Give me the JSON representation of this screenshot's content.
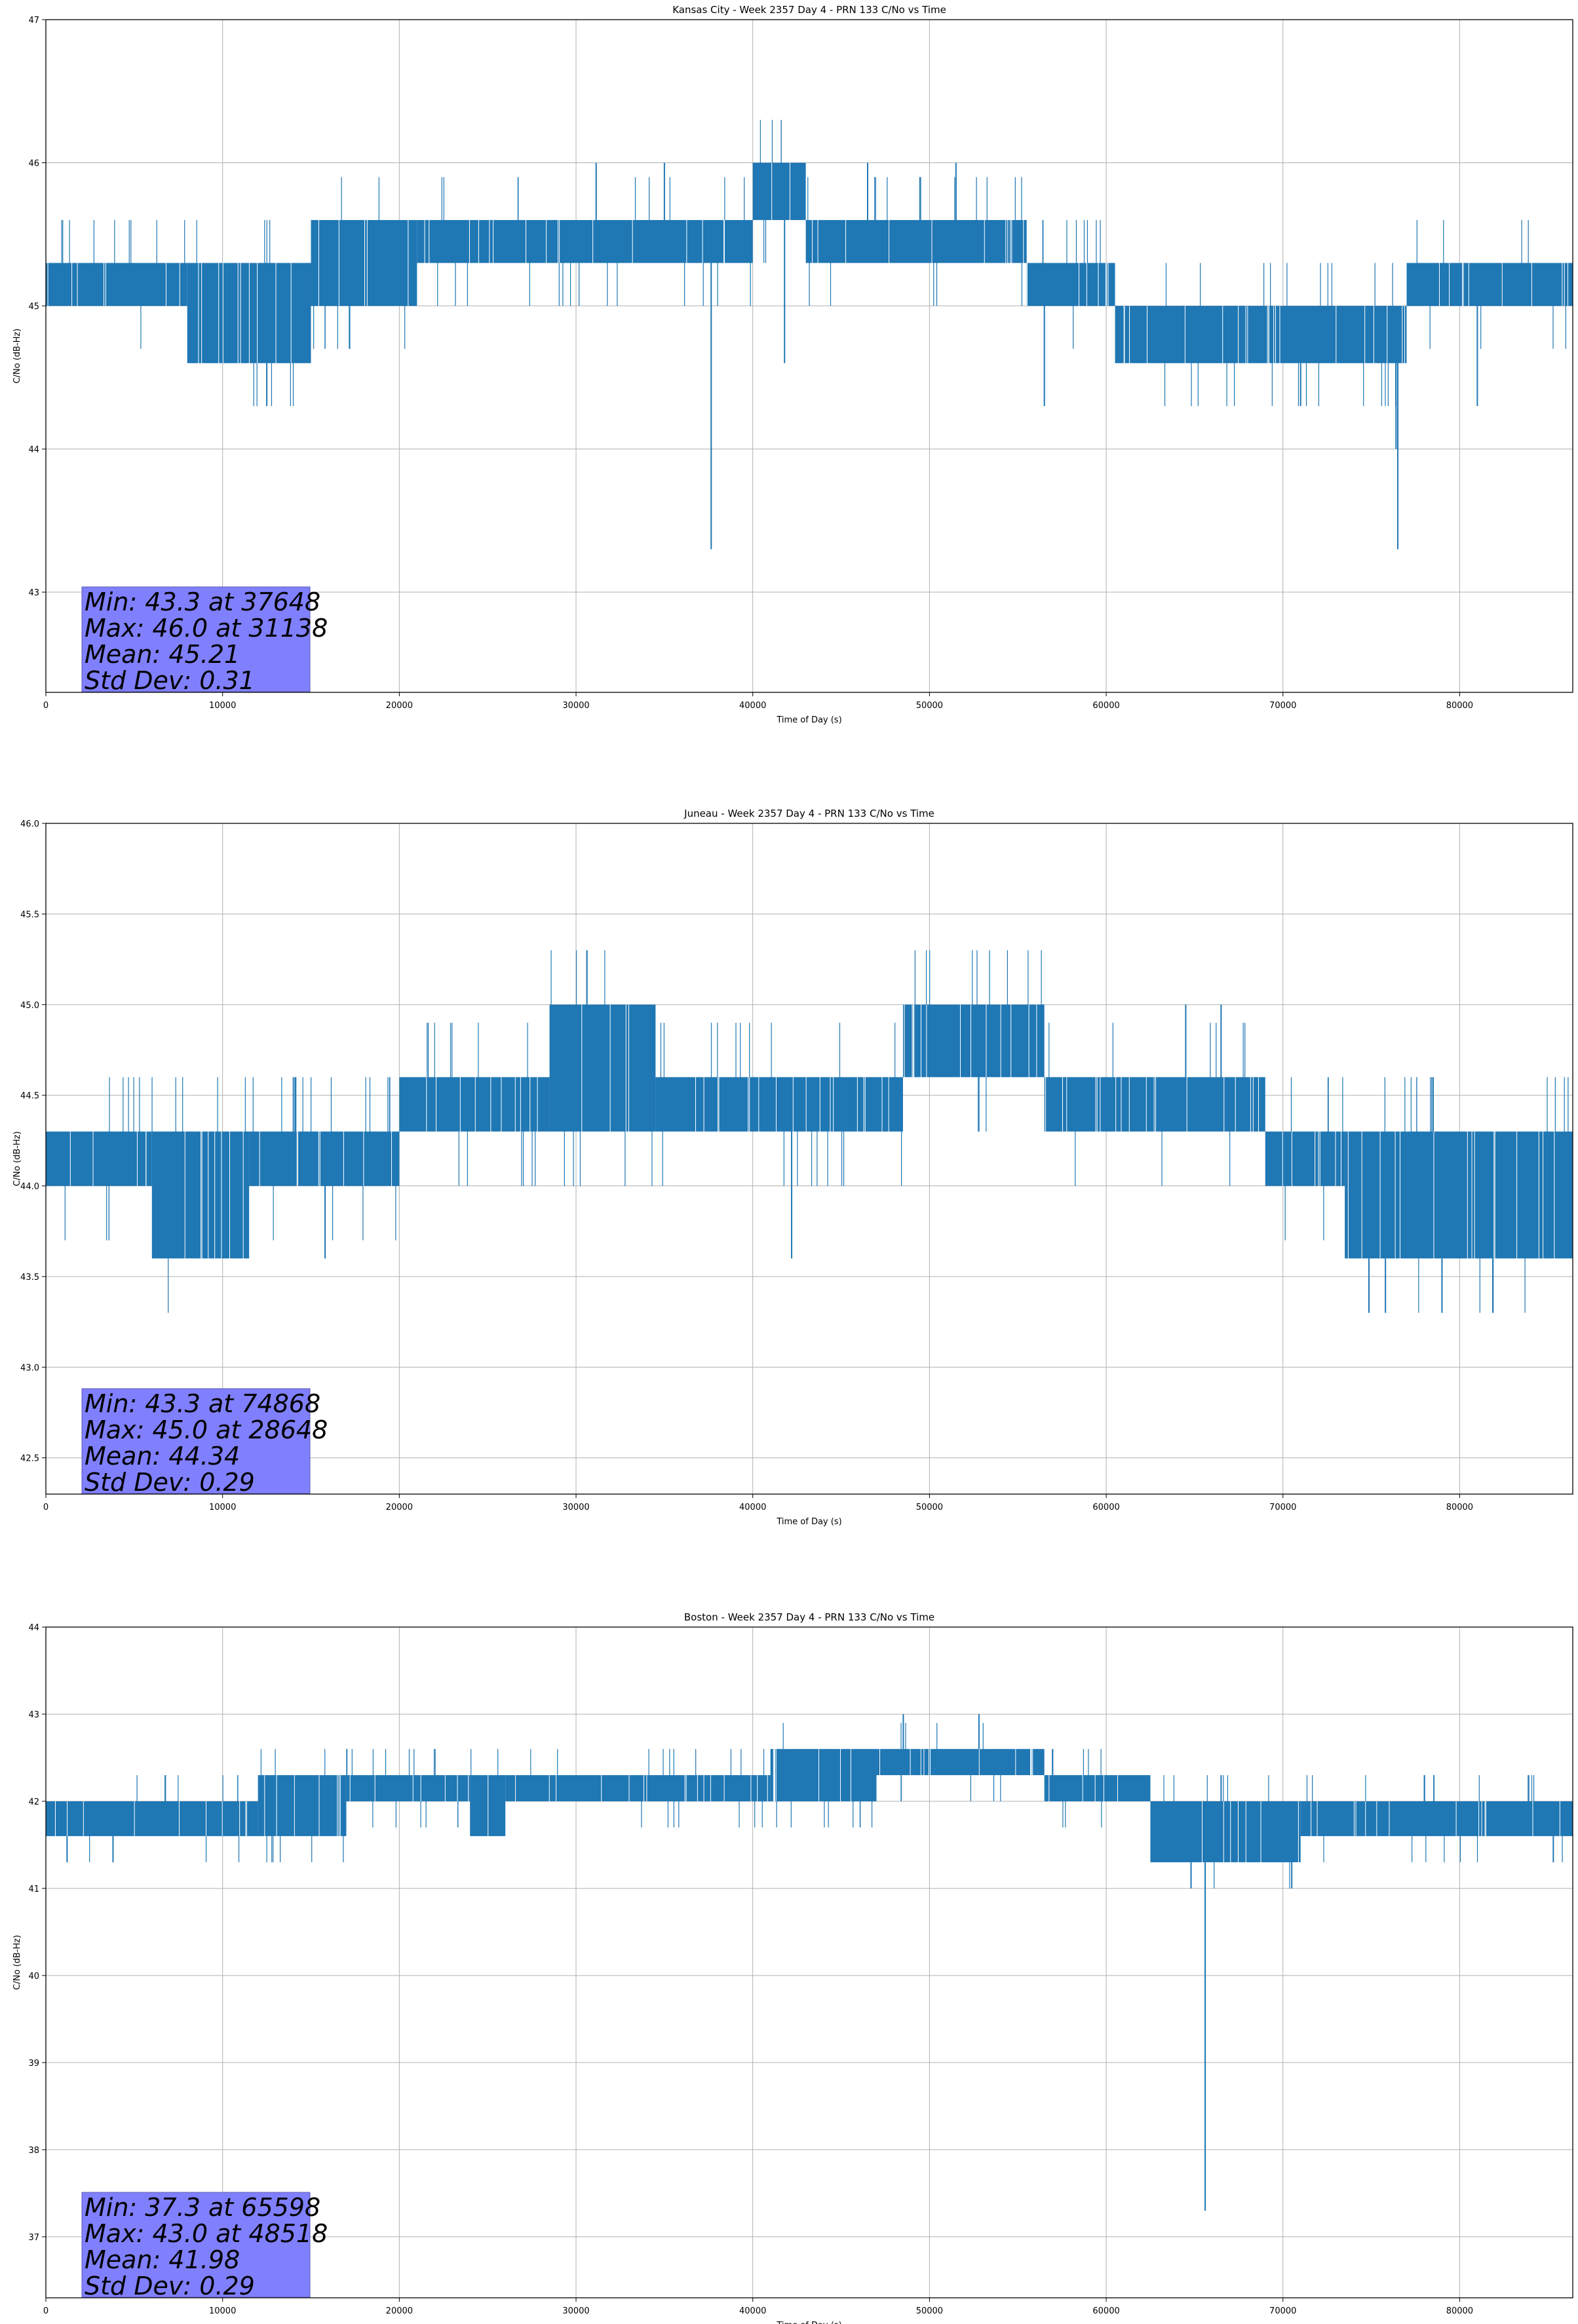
{
  "chart_data": [
    {
      "type": "line",
      "title": "Kansas City - Week 2357 Day 4 - PRN 133 C/No vs Time",
      "xlabel": "Time of Day (s)",
      "ylabel": "C/No (dB-Hz)",
      "xlim": [
        0,
        86400
      ],
      "ylim": [
        42.3,
        47
      ],
      "xticks": [
        0,
        10000,
        20000,
        30000,
        40000,
        50000,
        60000,
        70000,
        80000
      ],
      "yticks": [
        43,
        44,
        45,
        46,
        47
      ],
      "grid": true,
      "color": "#1f77b4",
      "series": [
        {
          "name": "C/No",
          "bands": [
            {
              "x0": 0,
              "x1": 8000,
              "lo": 45.0,
              "hi": 45.3
            },
            {
              "x0": 8000,
              "x1": 15000,
              "lo": 44.6,
              "hi": 45.3
            },
            {
              "x0": 15000,
              "x1": 21000,
              "lo": 45.0,
              "hi": 45.6
            },
            {
              "x0": 21000,
              "x1": 31000,
              "lo": 45.3,
              "hi": 45.6
            },
            {
              "x0": 31000,
              "x1": 40000,
              "lo": 45.3,
              "hi": 45.6
            },
            {
              "x0": 40000,
              "x1": 43000,
              "lo": 45.6,
              "hi": 46.0
            },
            {
              "x0": 43000,
              "x1": 50000,
              "lo": 45.3,
              "hi": 45.6
            },
            {
              "x0": 50000,
              "x1": 55500,
              "lo": 45.3,
              "hi": 45.6
            },
            {
              "x0": 55500,
              "x1": 60500,
              "lo": 45.0,
              "hi": 45.3
            },
            {
              "x0": 60500,
              "x1": 77000,
              "lo": 44.6,
              "hi": 45.0
            },
            {
              "x0": 77000,
              "x1": 86400,
              "lo": 45.0,
              "hi": 45.3
            }
          ],
          "spikes": [
            {
              "x": 37648,
              "y": 43.3
            },
            {
              "x": 76500,
              "y": 43.3
            },
            {
              "x": 76400,
              "y": 44.0
            },
            {
              "x": 41800,
              "y": 44.6
            },
            {
              "x": 31138,
              "y": 46.0
            },
            {
              "x": 35000,
              "y": 46.0
            },
            {
              "x": 46500,
              "y": 46.0
            },
            {
              "x": 51500,
              "y": 46.0
            },
            {
              "x": 12500,
              "y": 44.3
            },
            {
              "x": 56500,
              "y": 44.3
            },
            {
              "x": 71000,
              "y": 44.3
            },
            {
              "x": 81000,
              "y": 44.3
            }
          ]
        }
      ],
      "stats": {
        "min": "Min: 43.3 at 37648",
        "max": "Max: 46.0 at 31138",
        "mean": "Mean: 45.21",
        "std": "Std Dev: 0.31"
      }
    },
    {
      "type": "line",
      "title": "Juneau - Week 2357 Day 4 - PRN 133 C/No vs Time",
      "xlabel": "Time of Day (s)",
      "ylabel": "C/No (dB-Hz)",
      "xlim": [
        0,
        86400
      ],
      "ylim": [
        42.3,
        46.0
      ],
      "xticks": [
        0,
        10000,
        20000,
        30000,
        40000,
        50000,
        60000,
        70000,
        80000
      ],
      "yticks": [
        42.5,
        43.0,
        43.5,
        44.0,
        44.5,
        45.0,
        45.5,
        46.0
      ],
      "yticklabels": [
        "42.5",
        "43.0",
        "43.5",
        "44.0",
        "44.5",
        "45.0",
        "45.5",
        "46.0"
      ],
      "grid": true,
      "color": "#1f77b4",
      "series": [
        {
          "name": "C/No",
          "bands": [
            {
              "x0": 0,
              "x1": 6000,
              "lo": 44.0,
              "hi": 44.3
            },
            {
              "x0": 6000,
              "x1": 11500,
              "lo": 43.6,
              "hi": 44.3
            },
            {
              "x0": 11500,
              "x1": 20000,
              "lo": 44.0,
              "hi": 44.3
            },
            {
              "x0": 20000,
              "x1": 28500,
              "lo": 44.3,
              "hi": 44.6
            },
            {
              "x0": 28500,
              "x1": 34500,
              "lo": 44.3,
              "hi": 45.0
            },
            {
              "x0": 34500,
              "x1": 48500,
              "lo": 44.3,
              "hi": 44.6
            },
            {
              "x0": 48500,
              "x1": 56500,
              "lo": 44.6,
              "hi": 45.0
            },
            {
              "x0": 56500,
              "x1": 69000,
              "lo": 44.3,
              "hi": 44.6
            },
            {
              "x0": 69000,
              "x1": 73500,
              "lo": 44.0,
              "hi": 44.3
            },
            {
              "x0": 73500,
              "x1": 86400,
              "lo": 43.6,
              "hi": 44.3
            }
          ],
          "spikes": [
            {
              "x": 74868,
              "y": 43.3
            },
            {
              "x": 75800,
              "y": 43.3
            },
            {
              "x": 79000,
              "y": 43.3
            },
            {
              "x": 42200,
              "y": 43.6
            },
            {
              "x": 15800,
              "y": 43.6
            },
            {
              "x": 28648,
              "y": 45.0
            },
            {
              "x": 64500,
              "y": 45.0
            },
            {
              "x": 66500,
              "y": 45.0
            },
            {
              "x": 78500,
              "y": 44.6
            }
          ]
        }
      ],
      "stats": {
        "min": "Min: 43.3 at 74868",
        "max": "Max: 45.0 at 28648",
        "mean": "Mean: 44.34",
        "std": "Std Dev: 0.29"
      }
    },
    {
      "type": "line",
      "title": "Boston - Week 2357 Day 4 - PRN 133 C/No vs Time",
      "xlabel": "Time of Day (s)",
      "ylabel": "C/No (dB-Hz)",
      "xlim": [
        0,
        86400
      ],
      "ylim": [
        36.3,
        44
      ],
      "xticks": [
        0,
        10000,
        20000,
        30000,
        40000,
        50000,
        60000,
        70000,
        80000
      ],
      "yticks": [
        37,
        38,
        39,
        40,
        41,
        42,
        43,
        44
      ],
      "grid": true,
      "color": "#1f77b4",
      "series": [
        {
          "name": "C/No",
          "bands": [
            {
              "x0": 0,
              "x1": 12000,
              "lo": 41.6,
              "hi": 42.0
            },
            {
              "x0": 12000,
              "x1": 17000,
              "lo": 41.6,
              "hi": 42.3
            },
            {
              "x0": 17000,
              "x1": 24000,
              "lo": 42.0,
              "hi": 42.3
            },
            {
              "x0": 24000,
              "x1": 26000,
              "lo": 41.6,
              "hi": 42.3
            },
            {
              "x0": 26000,
              "x1": 41000,
              "lo": 42.0,
              "hi": 42.3
            },
            {
              "x0": 41000,
              "x1": 47000,
              "lo": 42.0,
              "hi": 42.6
            },
            {
              "x0": 47000,
              "x1": 56500,
              "lo": 42.3,
              "hi": 42.6
            },
            {
              "x0": 56500,
              "x1": 62500,
              "lo": 42.0,
              "hi": 42.3
            },
            {
              "x0": 62500,
              "x1": 71000,
              "lo": 41.3,
              "hi": 42.0
            },
            {
              "x0": 71000,
              "x1": 86400,
              "lo": 41.6,
              "hi": 42.0
            }
          ],
          "spikes": [
            {
              "x": 65598,
              "y": 37.3
            },
            {
              "x": 64800,
              "y": 41.0
            },
            {
              "x": 70500,
              "y": 41.0
            },
            {
              "x": 48518,
              "y": 43.0
            },
            {
              "x": 52800,
              "y": 43.0
            },
            {
              "x": 1200,
              "y": 41.3
            },
            {
              "x": 3800,
              "y": 41.3
            },
            {
              "x": 85300,
              "y": 41.3
            },
            {
              "x": 66500,
              "y": 42.3
            }
          ]
        }
      ],
      "stats": {
        "min": "Min: 37.3 at 65598",
        "max": "Max: 43.0 at 48518",
        "mean": "Mean: 41.98",
        "std": "Std Dev: 0.29"
      }
    }
  ]
}
